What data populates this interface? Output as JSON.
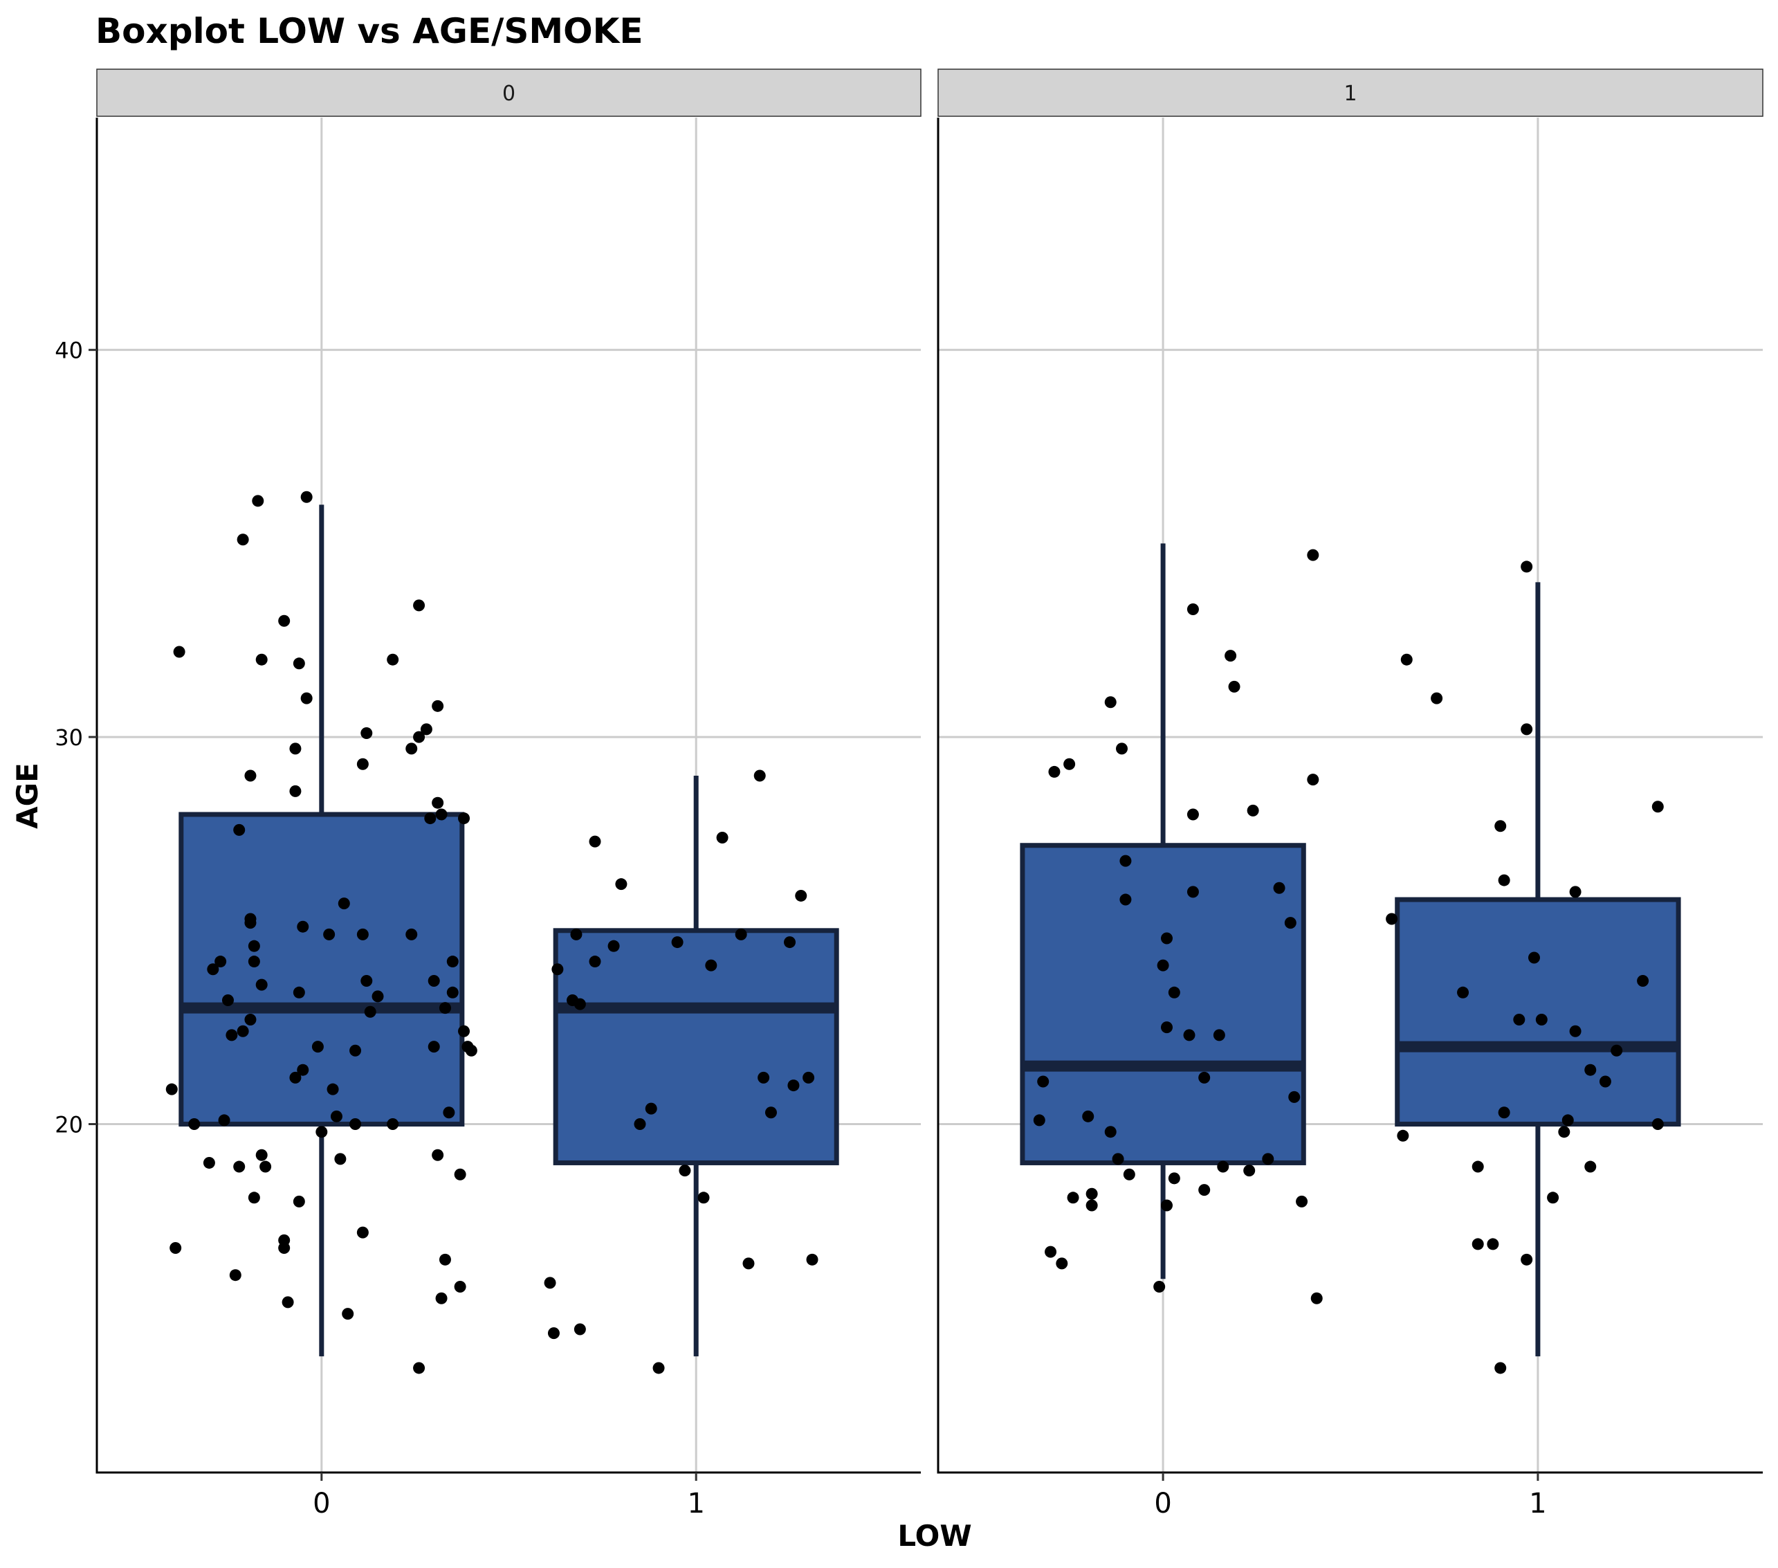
{
  "chart_data": {
    "type": "boxplot",
    "title": "Boxplot LOW vs AGE/SMOKE",
    "xlabel": "LOW",
    "ylabel": "AGE",
    "ylim": [
      11,
      46
    ],
    "y_ticks": [
      20,
      30,
      40
    ],
    "x_categories": [
      "0",
      "1"
    ],
    "grid": true,
    "colors": {
      "box_fill": "#345c9e",
      "box_stroke": "#16233d",
      "point": "#000000",
      "grid": "#cccccc",
      "strip": "#d3d3d3"
    },
    "facets": [
      {
        "label": "0",
        "boxes": [
          {
            "category": "0",
            "whisker_low": 14,
            "q1": 20,
            "median": 23,
            "q3": 28,
            "whisker_high": 36,
            "points": [
              [
                -0.4,
                20.9
              ],
              [
                -0.39,
                16.8
              ],
              [
                -0.38,
                32.2
              ],
              [
                -0.34,
                20
              ],
              [
                -0.3,
                19
              ],
              [
                -0.29,
                24
              ],
              [
                -0.27,
                24.2
              ],
              [
                -0.26,
                20.1
              ],
              [
                -0.25,
                23.2
              ],
              [
                -0.24,
                22.3
              ],
              [
                -0.23,
                16.1
              ],
              [
                -0.22,
                18.9
              ],
              [
                -0.22,
                27.6
              ],
              [
                -0.21,
                35.1
              ],
              [
                -0.21,
                22.4
              ],
              [
                -0.19,
                25.3
              ],
              [
                -0.19,
                22.7
              ],
              [
                -0.19,
                29
              ],
              [
                -0.19,
                25.2
              ],
              [
                -0.18,
                24.6
              ],
              [
                -0.18,
                18.1
              ],
              [
                -0.18,
                24.2
              ],
              [
                -0.17,
                36.1
              ],
              [
                -0.16,
                23.6
              ],
              [
                -0.16,
                32
              ],
              [
                -0.16,
                19.2
              ],
              [
                -0.15,
                18.9
              ],
              [
                -0.1,
                16.8
              ],
              [
                -0.1,
                17
              ],
              [
                -0.1,
                33
              ],
              [
                -0.09,
                15.4
              ],
              [
                -0.07,
                28.6
              ],
              [
                -0.07,
                29.7
              ],
              [
                -0.07,
                21.2
              ],
              [
                -0.06,
                23.4
              ],
              [
                -0.06,
                31.9
              ],
              [
                -0.06,
                18
              ],
              [
                -0.05,
                21.4
              ],
              [
                -0.05,
                25.1
              ],
              [
                -0.04,
                31
              ],
              [
                -0.04,
                36.2
              ],
              [
                -0.01,
                22
              ],
              [
                0,
                19.8
              ],
              [
                0.02,
                24.9
              ],
              [
                0.03,
                20.9
              ],
              [
                0.04,
                20.2
              ],
              [
                0.05,
                19.1
              ],
              [
                0.06,
                25.7
              ],
              [
                0.07,
                15.1
              ],
              [
                0.09,
                21.9
              ],
              [
                0.09,
                20
              ],
              [
                0.11,
                29.3
              ],
              [
                0.11,
                24.9
              ],
              [
                0.11,
                17.2
              ],
              [
                0.12,
                30.1
              ],
              [
                0.12,
                23.7
              ],
              [
                0.13,
                22.9
              ],
              [
                0.15,
                23.3
              ],
              [
                0.19,
                20
              ],
              [
                0.19,
                32
              ],
              [
                0.24,
                29.7
              ],
              [
                0.24,
                24.9
              ],
              [
                0.26,
                13.7
              ],
              [
                0.26,
                33.4
              ],
              [
                0.26,
                30
              ],
              [
                0.28,
                30.2
              ],
              [
                0.29,
                27.9
              ],
              [
                0.3,
                23.7
              ],
              [
                0.3,
                22
              ],
              [
                0.31,
                19.2
              ],
              [
                0.31,
                28.3
              ],
              [
                0.31,
                30.8
              ],
              [
                0.32,
                15.5
              ],
              [
                0.32,
                28
              ],
              [
                0.33,
                16.5
              ],
              [
                0.33,
                23
              ],
              [
                0.34,
                20.3
              ],
              [
                0.35,
                24.2
              ],
              [
                0.35,
                23.4
              ],
              [
                0.37,
                18.7
              ],
              [
                0.37,
                15.8
              ],
              [
                0.38,
                22.4
              ],
              [
                0.38,
                27.9
              ],
              [
                0.39,
                22
              ],
              [
                0.4,
                21.9
              ]
            ]
          },
          {
            "category": "1",
            "whisker_low": 14,
            "q1": 19,
            "median": 23,
            "q3": 25,
            "whisker_high": 29,
            "points": [
              [
                -0.39,
                15.9
              ],
              [
                -0.38,
                14.6
              ],
              [
                -0.37,
                24
              ],
              [
                -0.33,
                23.2
              ],
              [
                -0.32,
                24.9
              ],
              [
                -0.31,
                14.7
              ],
              [
                -0.31,
                23.1
              ],
              [
                -0.27,
                27.3
              ],
              [
                -0.27,
                24.2
              ],
              [
                -0.22,
                24.6
              ],
              [
                -0.2,
                26.2
              ],
              [
                -0.15,
                20
              ],
              [
                -0.12,
                20.4
              ],
              [
                -0.1,
                13.7
              ],
              [
                -0.05,
                24.7
              ],
              [
                -0.03,
                18.8
              ],
              [
                0.02,
                18.1
              ],
              [
                0.04,
                24.1
              ],
              [
                0.07,
                27.4
              ],
              [
                0.12,
                24.9
              ],
              [
                0.14,
                16.4
              ],
              [
                0.17,
                29
              ],
              [
                0.18,
                21.2
              ],
              [
                0.2,
                20.3
              ],
              [
                0.25,
                24.7
              ],
              [
                0.26,
                21
              ],
              [
                0.28,
                25.9
              ],
              [
                0.3,
                21.2
              ],
              [
                0.31,
                16.5
              ]
            ]
          }
        ]
      },
      {
        "label": "1",
        "boxes": [
          {
            "category": "0",
            "whisker_low": 16,
            "q1": 19,
            "median": 21.5,
            "q3": 27.2,
            "whisker_high": 35,
            "points": [
              [
                -0.33,
                20.1
              ],
              [
                -0.32,
                21.1
              ],
              [
                -0.3,
                16.7
              ],
              [
                -0.29,
                29.1
              ],
              [
                -0.27,
                16.4
              ],
              [
                -0.25,
                29.3
              ],
              [
                -0.24,
                18.1
              ],
              [
                -0.2,
                20.2
              ],
              [
                -0.19,
                17.9
              ],
              [
                -0.19,
                18.2
              ],
              [
                -0.14,
                30.9
              ],
              [
                -0.14,
                19.8
              ],
              [
                -0.12,
                19.1
              ],
              [
                -0.11,
                29.7
              ],
              [
                -0.1,
                26.8
              ],
              [
                -0.1,
                25.8
              ],
              [
                -0.09,
                18.7
              ],
              [
                -0.01,
                15.8
              ],
              [
                0.01,
                24.8
              ],
              [
                0,
                24.1
              ],
              [
                0.01,
                22.5
              ],
              [
                0.01,
                17.9
              ],
              [
                0.03,
                18.6
              ],
              [
                0.03,
                23.4
              ],
              [
                0.07,
                22.3
              ],
              [
                0.08,
                26
              ],
              [
                0.08,
                28
              ],
              [
                0.08,
                33.3
              ],
              [
                0.11,
                18.3
              ],
              [
                0.11,
                21.2
              ],
              [
                0.15,
                22.3
              ],
              [
                0.16,
                18.9
              ],
              [
                0.18,
                32.1
              ],
              [
                0.19,
                31.3
              ],
              [
                0.23,
                18.8
              ],
              [
                0.24,
                28.1
              ],
              [
                0.28,
                19.1
              ],
              [
                0.31,
                26.1
              ],
              [
                0.34,
                25.2
              ],
              [
                0.35,
                20.7
              ],
              [
                0.37,
                18
              ],
              [
                0.4,
                28.9
              ],
              [
                0.4,
                34.7
              ],
              [
                0.41,
                15.5
              ]
            ]
          },
          {
            "category": "1",
            "whisker_low": 14,
            "q1": 20,
            "median": 22,
            "q3": 25.8,
            "whisker_high": 34,
            "points": [
              [
                -0.39,
                25.3
              ],
              [
                -0.36,
                19.7
              ],
              [
                -0.35,
                32
              ],
              [
                -0.27,
                31
              ],
              [
                -0.2,
                23.4
              ],
              [
                -0.16,
                16.9
              ],
              [
                -0.16,
                18.9
              ],
              [
                -0.12,
                16.9
              ],
              [
                -0.1,
                13.7
              ],
              [
                -0.1,
                27.7
              ],
              [
                -0.09,
                26.3
              ],
              [
                -0.09,
                20.3
              ],
              [
                -0.05,
                22.7
              ],
              [
                -0.03,
                16.5
              ],
              [
                -0.03,
                30.2
              ],
              [
                -0.03,
                34.4
              ],
              [
                -0.01,
                24.3
              ],
              [
                0.01,
                22.7
              ],
              [
                0.04,
                18.1
              ],
              [
                0.07,
                19.8
              ],
              [
                0.08,
                20.1
              ],
              [
                0.1,
                26
              ],
              [
                0.1,
                22.4
              ],
              [
                0.14,
                18.9
              ],
              [
                0.14,
                21.4
              ],
              [
                0.18,
                21.1
              ],
              [
                0.21,
                21.9
              ],
              [
                0.28,
                23.7
              ],
              [
                0.32,
                20
              ],
              [
                0.32,
                28.2
              ]
            ]
          }
        ]
      }
    ]
  }
}
